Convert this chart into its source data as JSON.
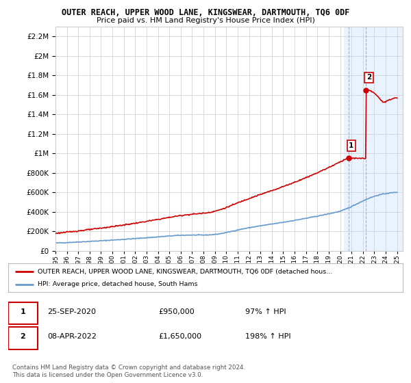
{
  "title": "OUTER REACH, UPPER WOOD LANE, KINGSWEAR, DARTMOUTH, TQ6 0DF",
  "subtitle": "Price paid vs. HM Land Registry's House Price Index (HPI)",
  "legend_line1": "OUTER REACH, UPPER WOOD LANE, KINGSWEAR, DARTMOUTH, TQ6 0DF (detached hous...",
  "legend_line2": "HPI: Average price, detached house, South Hams",
  "footnote": "Contains HM Land Registry data © Crown copyright and database right 2024.\nThis data is licensed under the Open Government Licence v3.0.",
  "marker1_date": "25-SEP-2020",
  "marker1_price": "£950,000",
  "marker1_hpi": "97% ↑ HPI",
  "marker2_date": "08-APR-2022",
  "marker2_price": "£1,650,000",
  "marker2_hpi": "198% ↑ HPI",
  "red_color": "#cc0000",
  "blue_color": "#6699cc",
  "highlight_color": "#ddeeff",
  "ylim": [
    0,
    2300000
  ],
  "xlim_start": 1995.0,
  "xlim_end": 2025.5,
  "marker1_x": 2020.73,
  "marker1_y": 950000,
  "marker2_x": 2022.27,
  "marker2_y": 1650000,
  "highlight_x_start": 2020.3,
  "highlight_x_end": 2025.5
}
